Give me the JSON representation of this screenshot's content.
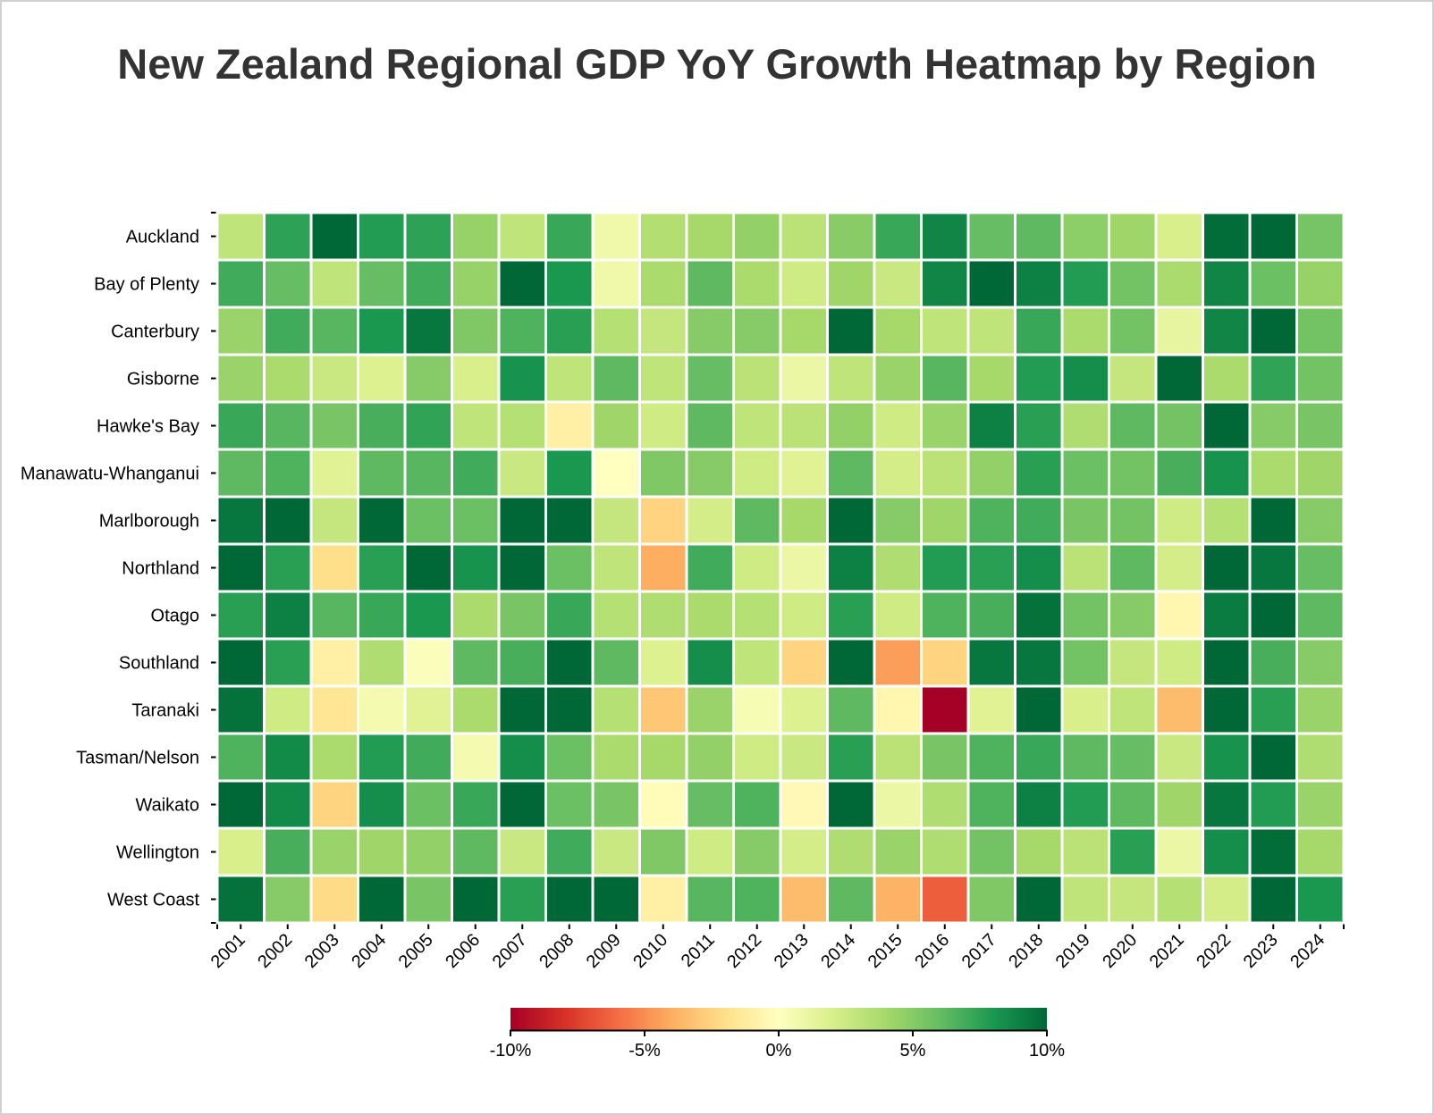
{
  "chart_data": {
    "type": "heatmap",
    "title": "New Zealand Regional GDP YoY Growth Heatmap by Region",
    "xlabel": "",
    "ylabel": "",
    "x": [
      "2001",
      "2002",
      "2003",
      "2004",
      "2005",
      "2006",
      "2007",
      "2008",
      "2009",
      "2010",
      "2011",
      "2012",
      "2013",
      "2014",
      "2015",
      "2016",
      "2017",
      "2018",
      "2019",
      "2020",
      "2021",
      "2022",
      "2023",
      "2024"
    ],
    "y": [
      "Auckland",
      "Bay of Plenty",
      "Canterbury",
      "Gisborne",
      "Hawke's Bay",
      "Manawatu-Whanganui",
      "Marlborough",
      "Northland",
      "Otago",
      "Southland",
      "Taranaki",
      "Tasman/Nelson",
      "Waikato",
      "Wellington",
      "West Coast"
    ],
    "z": [
      [
        3.0,
        7.5,
        10.0,
        7.8,
        7.5,
        4.5,
        3.0,
        7.2,
        0.8,
        3.5,
        4.0,
        4.6,
        3.2,
        4.9,
        7.2,
        8.8,
        6.0,
        6.2,
        4.8,
        4.2,
        2.0,
        9.8,
        10.0,
        5.5
      ],
      [
        7.0,
        6.0,
        3.0,
        6.0,
        7.0,
        4.5,
        10.0,
        8.0,
        0.8,
        3.8,
        6.2,
        3.8,
        2.4,
        4.2,
        2.6,
        8.8,
        10.0,
        9.0,
        7.8,
        5.6,
        3.8,
        8.8,
        5.8,
        4.5
      ],
      [
        4.4,
        7.0,
        6.4,
        8.0,
        9.4,
        5.2,
        6.6,
        7.6,
        3.4,
        2.8,
        5.0,
        5.0,
        4.0,
        10.0,
        4.0,
        3.0,
        3.0,
        7.2,
        3.8,
        5.6,
        1.2,
        8.8,
        10.0,
        5.6
      ],
      [
        4.4,
        3.8,
        2.6,
        1.8,
        5.0,
        2.0,
        8.2,
        3.0,
        6.2,
        3.0,
        6.0,
        3.2,
        1.0,
        3.0,
        4.4,
        6.4,
        4.0,
        7.8,
        8.4,
        2.8,
        10.0,
        3.8,
        7.4,
        5.6
      ],
      [
        7.2,
        6.4,
        5.4,
        6.8,
        7.4,
        3.0,
        3.4,
        -1.0,
        4.2,
        2.4,
        6.2,
        3.0,
        3.2,
        4.6,
        2.4,
        4.4,
        9.0,
        7.6,
        3.6,
        6.2,
        5.6,
        10.0,
        5.0,
        5.4
      ],
      [
        6.2,
        6.6,
        1.6,
        6.2,
        6.4,
        7.0,
        2.6,
        8.0,
        0.0,
        5.2,
        5.0,
        2.4,
        1.6,
        6.2,
        2.2,
        3.2,
        4.6,
        7.6,
        5.8,
        5.6,
        6.8,
        8.2,
        3.8,
        4.2
      ],
      [
        9.4,
        10.0,
        2.8,
        10.0,
        5.8,
        5.8,
        10.0,
        10.0,
        2.8,
        -2.5,
        2.2,
        6.2,
        4.0,
        10.0,
        5.0,
        4.2,
        6.6,
        7.0,
        5.4,
        5.6,
        2.4,
        3.4,
        10.0,
        5.0
      ],
      [
        10.0,
        7.6,
        -2.0,
        7.6,
        10.0,
        8.2,
        10.0,
        5.8,
        3.0,
        -4.0,
        7.0,
        2.4,
        1.0,
        9.0,
        3.6,
        7.8,
        7.6,
        8.4,
        3.2,
        6.2,
        2.2,
        10.0,
        9.4,
        6.0
      ],
      [
        7.6,
        9.0,
        6.4,
        7.2,
        8.0,
        3.8,
        5.4,
        7.2,
        3.4,
        3.6,
        3.8,
        3.4,
        2.4,
        7.6,
        2.4,
        6.6,
        6.8,
        9.6,
        5.6,
        5.0,
        -0.6,
        9.2,
        10.0,
        6.2
      ],
      [
        10.0,
        7.6,
        -1.0,
        3.6,
        0.2,
        6.2,
        6.8,
        10.0,
        6.2,
        1.8,
        8.4,
        3.0,
        -2.5,
        10.0,
        -4.5,
        -2.5,
        9.4,
        9.4,
        5.6,
        2.8,
        2.4,
        10.0,
        6.8,
        5.0
      ],
      [
        9.6,
        2.4,
        -1.6,
        0.6,
        1.6,
        3.8,
        10.0,
        10.0,
        3.4,
        -3.0,
        4.4,
        0.4,
        1.8,
        6.2,
        -0.6,
        -10.0,
        1.6,
        10.0,
        2.0,
        3.0,
        -3.5,
        10.0,
        7.6,
        4.4
      ],
      [
        6.6,
        8.6,
        3.8,
        7.8,
        7.0,
        0.6,
        8.4,
        5.8,
        3.8,
        4.0,
        4.6,
        2.4,
        2.6,
        7.6,
        3.2,
        5.4,
        6.6,
        7.2,
        6.2,
        6.0,
        2.6,
        8.2,
        10.0,
        3.6
      ],
      [
        10.0,
        8.6,
        -2.5,
        8.4,
        5.8,
        7.2,
        10.0,
        5.8,
        5.4,
        -0.2,
        6.0,
        6.6,
        -0.4,
        10.0,
        1.0,
        3.6,
        6.6,
        9.0,
        7.8,
        6.2,
        4.2,
        9.4,
        7.8,
        4.4
      ],
      [
        2.0,
        6.8,
        4.4,
        4.2,
        4.6,
        6.2,
        2.6,
        7.0,
        2.6,
        5.2,
        2.4,
        5.0,
        2.2,
        3.6,
        4.4,
        3.6,
        5.6,
        4.0,
        3.2,
        7.6,
        1.0,
        8.4,
        9.8,
        4.0
      ],
      [
        9.6,
        5.0,
        -2.2,
        10.0,
        5.4,
        10.0,
        7.6,
        10.0,
        10.0,
        -1.0,
        6.4,
        6.6,
        -3.5,
        6.2,
        -3.8,
        -6.5,
        5.2,
        10.0,
        3.0,
        2.8,
        3.4,
        2.2,
        10.0,
        8.0
      ]
    ],
    "zlim": [
      -10,
      10
    ],
    "colorscale": "RdYlGn",
    "colorbar": {
      "ticks": [
        "-10%",
        "-5%",
        "0%",
        "5%",
        "10%"
      ]
    },
    "grid": false,
    "legend": "colorbar-bottom-center"
  }
}
